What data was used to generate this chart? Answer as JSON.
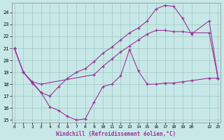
{
  "xlabel": "Windchill (Refroidissement éolien,°C)",
  "bg_color": "#c8e8e8",
  "grid_color": "#9dc8c0",
  "line_color": "#993399",
  "ylim": [
    14.8,
    24.8
  ],
  "xlim": [
    -0.3,
    23.3
  ],
  "yticks": [
    15,
    16,
    17,
    18,
    19,
    20,
    21,
    22,
    23,
    24
  ],
  "xticks": [
    0,
    1,
    2,
    3,
    4,
    5,
    6,
    7,
    8,
    9,
    10,
    11,
    12,
    13,
    14,
    15,
    16,
    17,
    18,
    19,
    20,
    22,
    23
  ],
  "s1_x": [
    0,
    1,
    2,
    3,
    4,
    5,
    6,
    7,
    8,
    9,
    10,
    11,
    12,
    13,
    14,
    15,
    16,
    17,
    18,
    19,
    20,
    22,
    23
  ],
  "s1_y": [
    21.0,
    19.0,
    18.1,
    17.3,
    16.1,
    15.8,
    15.3,
    15.0,
    15.1,
    16.5,
    17.8,
    18.0,
    18.7,
    20.9,
    19.1,
    18.0,
    18.0,
    18.1,
    18.1,
    18.2,
    18.3,
    18.5,
    18.5
  ],
  "s2_x": [
    0,
    1,
    2,
    3,
    9,
    10,
    11,
    12,
    13,
    14,
    15,
    16,
    17,
    18,
    19,
    20,
    22,
    23
  ],
  "s2_y": [
    21.0,
    19.0,
    18.2,
    18.0,
    18.8,
    19.5,
    20.1,
    20.7,
    21.2,
    21.7,
    22.2,
    22.5,
    22.5,
    22.4,
    22.4,
    22.3,
    22.3,
    18.5
  ],
  "s3_x": [
    0,
    1,
    2,
    3,
    4,
    5,
    6,
    7,
    8,
    9,
    10,
    11,
    12,
    13,
    14,
    15,
    16,
    17,
    18,
    19,
    20,
    22,
    23
  ],
  "s3_y": [
    21.0,
    19.0,
    18.2,
    17.3,
    17.0,
    17.8,
    18.5,
    19.0,
    19.3,
    19.9,
    20.6,
    21.1,
    21.7,
    22.3,
    22.7,
    23.3,
    24.3,
    24.6,
    24.5,
    23.5,
    22.2,
    23.3,
    18.5
  ]
}
